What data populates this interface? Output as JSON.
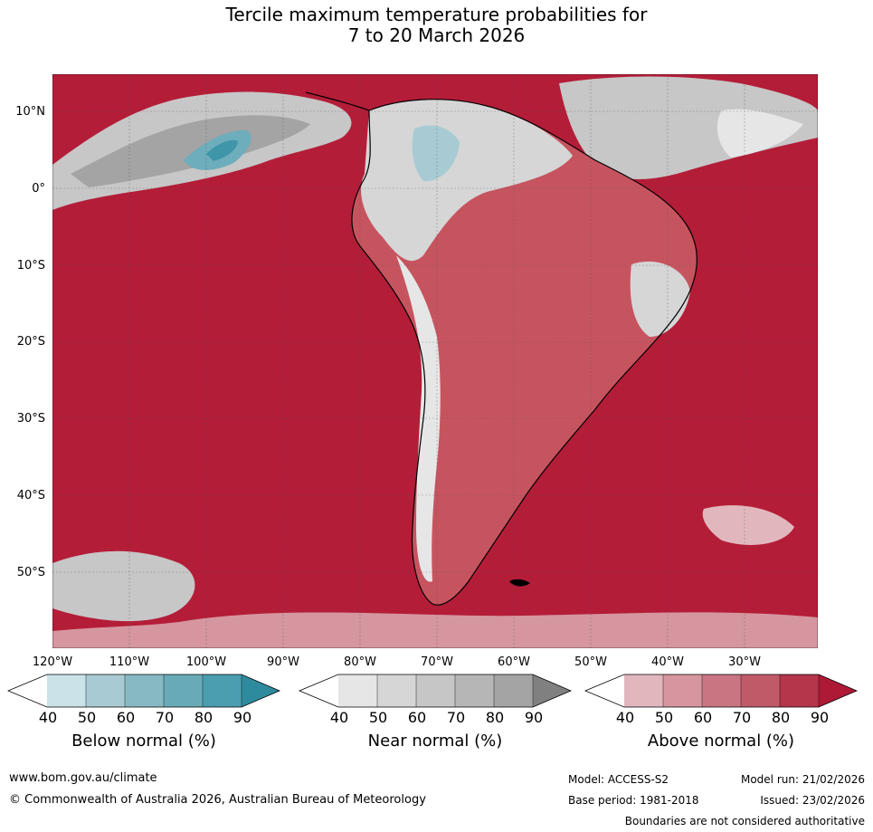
{
  "title": {
    "line1": "Tercile maximum temperature probabilities for",
    "line2": "7 to 20 March 2026"
  },
  "map": {
    "lat_labels": [
      "10°N",
      "0°",
      "10°S",
      "20°S",
      "30°S",
      "40°S",
      "50°S"
    ],
    "lon_labels": [
      "120°W",
      "110°W",
      "100°W",
      "90°W",
      "80°W",
      "70°W",
      "60°W",
      "50°W",
      "40°W",
      "30°W"
    ],
    "colors": {
      "ocean_above": "#b41d38",
      "land_above": "#c6545f",
      "near": "#c7c7c7",
      "below": "#6dadbc"
    }
  },
  "legends": [
    {
      "label": "Below normal (%)",
      "ticks": [
        "40",
        "50",
        "60",
        "70",
        "80",
        "90"
      ],
      "colors": [
        "#ffffff",
        "#cbe2e8",
        "#a8cbd3",
        "#87b9c3",
        "#68aab8",
        "#4b9eb0",
        "#2e8b9e"
      ]
    },
    {
      "label": "Near normal (%)",
      "ticks": [
        "40",
        "50",
        "60",
        "70",
        "80",
        "90"
      ],
      "colors": [
        "#ffffff",
        "#e6e6e6",
        "#d6d6d6",
        "#c6c6c6",
        "#b6b6b6",
        "#a4a4a4",
        "#808080"
      ]
    },
    {
      "label": "Above normal (%)",
      "ticks": [
        "40",
        "50",
        "60",
        "70",
        "80",
        "90"
      ],
      "colors": [
        "#ffffff",
        "#e1b7bd",
        "#d5969f",
        "#c97582",
        "#c05a68",
        "#b5354a",
        "#ae1a35"
      ]
    }
  ],
  "footer": {
    "website": "www.bom.gov.au/climate",
    "copyright": "© Commonwealth of Australia 2026, Australian Bureau of Meteorology",
    "model": "Model: ACCESS-S2",
    "model_run": "Model run: 21/02/2026",
    "base_period": "Base period: 1981-2018",
    "issued": "Issued: 23/02/2026",
    "disclaimer": "Boundaries are not considered authoritative"
  }
}
